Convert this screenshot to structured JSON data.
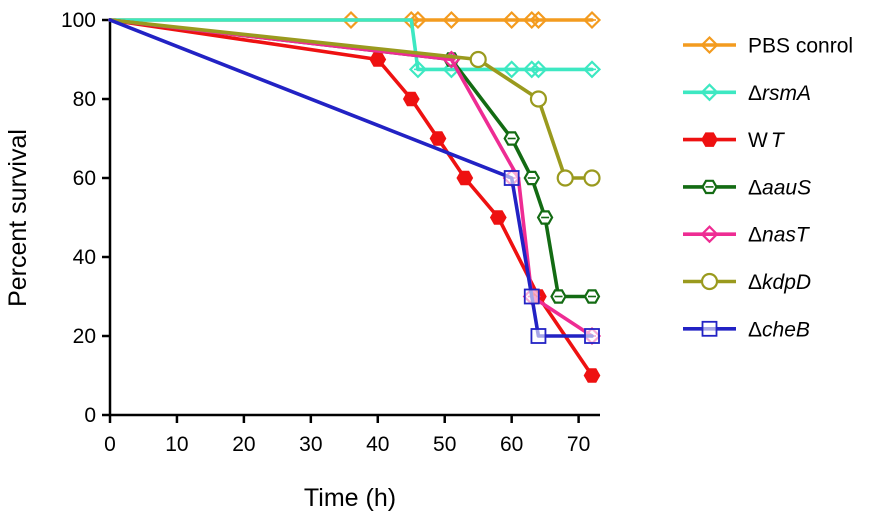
{
  "chart_data": {
    "type": "line",
    "title": "",
    "xlabel": "Time (h)",
    "ylabel": "Percent survival",
    "xlim": [
      0,
      72
    ],
    "ylim": [
      0,
      100
    ],
    "xticks": [
      0,
      10,
      20,
      30,
      40,
      50,
      60,
      70
    ],
    "yticks": [
      0,
      20,
      40,
      60,
      80,
      100
    ],
    "grid": false,
    "legend_position": "right",
    "series": [
      {
        "name": "PBS conrol",
        "prefix": "",
        "italic": "",
        "color": "#f39b1f",
        "marker": "diamond",
        "steps": false,
        "x": [
          0,
          72
        ],
        "y": [
          100,
          100
        ],
        "marker_x": [
          36,
          45,
          46,
          51,
          60,
          63,
          64,
          72
        ],
        "marker_y": [
          100,
          100,
          100,
          100,
          100,
          100,
          100,
          100
        ]
      },
      {
        "name": "ΔrsmA",
        "prefix": "Δ",
        "italic": "rsmA",
        "color": "#3de8c2",
        "marker": "diamond",
        "steps": false,
        "x": [
          0,
          45,
          46,
          72
        ],
        "y": [
          100,
          100,
          87.5,
          87.5
        ],
        "marker_x": [
          46,
          51,
          60,
          63,
          64,
          72
        ],
        "marker_y": [
          87.5,
          87.5,
          87.5,
          87.5,
          87.5,
          87.5
        ]
      },
      {
        "name": "WT",
        "prefix": "W",
        "italic": "T",
        "color": "#ee1111",
        "marker": "hexagon-filled",
        "steps": false,
        "x": [
          0,
          40,
          45,
          49,
          53,
          58,
          64,
          72
        ],
        "y": [
          100,
          90,
          80,
          70,
          60,
          50,
          30,
          10
        ],
        "marker_x": [
          40,
          45,
          49,
          53,
          58,
          64,
          72
        ],
        "marker_y": [
          90,
          80,
          70,
          60,
          50,
          30,
          10
        ]
      },
      {
        "name": "ΔaauS",
        "prefix": "Δ",
        "italic": "aauS",
        "color": "#136b13",
        "marker": "hexagon-open",
        "steps": false,
        "x": [
          0,
          51,
          60,
          63,
          65,
          67,
          72
        ],
        "y": [
          100,
          90,
          70,
          60,
          50,
          30,
          30
        ],
        "marker_x": [
          51,
          60,
          63,
          65,
          67,
          72
        ],
        "marker_y": [
          90,
          70,
          60,
          50,
          30,
          30
        ]
      },
      {
        "name": "ΔnasT",
        "prefix": "Δ",
        "italic": "nasT",
        "color": "#ee2c93",
        "marker": "diamond",
        "steps": false,
        "x": [
          0,
          51,
          61,
          63,
          72
        ],
        "y": [
          100,
          90,
          60,
          30,
          20
        ],
        "marker_x": [
          51,
          60,
          63,
          72
        ],
        "marker_y": [
          90,
          60,
          30,
          20
        ]
      },
      {
        "name": "ΔkdpD",
        "prefix": "Δ",
        "italic": "kdpD",
        "color": "#9a9a1e",
        "marker": "circle-open",
        "steps": false,
        "x": [
          0,
          55,
          64,
          68,
          72
        ],
        "y": [
          100,
          90,
          80,
          60,
          60
        ],
        "marker_x": [
          55,
          64,
          68,
          72
        ],
        "marker_y": [
          90,
          80,
          60,
          60
        ]
      },
      {
        "name": "ΔcheB",
        "prefix": "Δ",
        "italic": "cheB",
        "color": "#2222c4",
        "marker": "square-open",
        "steps": false,
        "x": [
          0,
          60,
          63,
          64,
          72
        ],
        "y": [
          100,
          60,
          30,
          20,
          20
        ],
        "marker_x": [
          60,
          63,
          64,
          72
        ],
        "marker_y": [
          60,
          30,
          20,
          20
        ]
      }
    ]
  }
}
